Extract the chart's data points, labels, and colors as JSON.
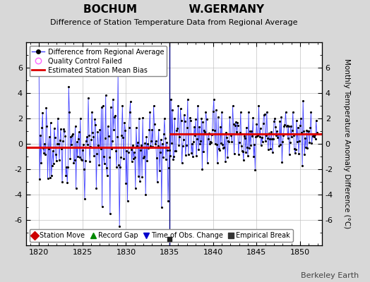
{
  "title": "BOCHUM              W.GERMANY",
  "subtitle": "Difference of Station Temperature Data from Regional Average",
  "ylabel": "Monthly Temperature Anomaly Difference (°C)",
  "xlabel_years": [
    1820,
    1825,
    1830,
    1835,
    1840,
    1845,
    1850
  ],
  "xlim": [
    1818.5,
    1852.5
  ],
  "ylim": [
    -8,
    8
  ],
  "yticks": [
    -6,
    -4,
    -2,
    0,
    2,
    4,
    6
  ],
  "background_color": "#d8d8d8",
  "plot_bg_color": "#ffffff",
  "line_color": "#4444ff",
  "bias_color": "#dd0000",
  "marker_color": "#000000",
  "grid_color": "#bbbbbb",
  "watermark": "Berkeley Earth",
  "segment_biases": [
    {
      "start": 1818.5,
      "end": 1835.0,
      "bias": -0.3
    },
    {
      "start": 1835.0,
      "end": 1852.5,
      "bias": 0.8
    }
  ],
  "empirical_break_x": 1835.0,
  "empirical_break_color": "#000080"
}
